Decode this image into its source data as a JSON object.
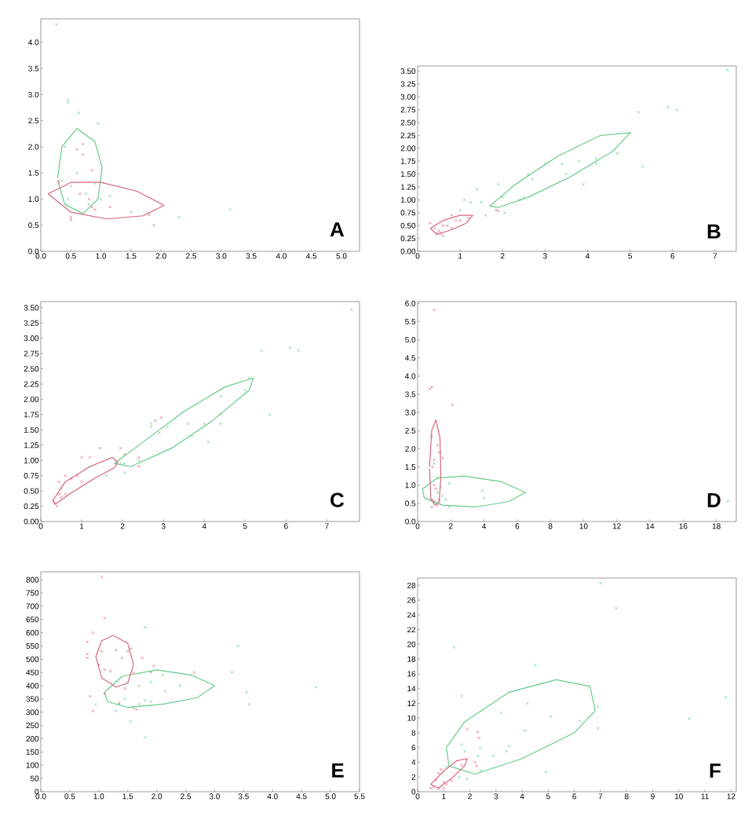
{
  "chart_data": [
    {
      "type": "scatter",
      "annotations": [
        "A"
      ],
      "xlim": [
        0,
        5.3
      ],
      "ylim": [
        0,
        4.45
      ],
      "xticks": [
        {
          "value": 0,
          "label": "0.0"
        },
        0.5,
        {
          "value": 1,
          "label": "1.0"
        },
        1.5,
        {
          "value": 2,
          "label": "2.0"
        },
        2.5,
        {
          "value": 3,
          "label": "3.0"
        },
        3.5,
        {
          "value": 4,
          "label": "4.0"
        },
        4.5,
        {
          "value": 5,
          "label": "5.0"
        }
      ],
      "yticks": [
        {
          "value": 0,
          "label": "0.0"
        },
        0.5,
        {
          "value": 1,
          "label": "1.0"
        },
        1.5,
        {
          "value": 2,
          "label": "2.0"
        },
        2.5,
        {
          "value": 3,
          "label": "3.0"
        },
        3.5,
        {
          "value": 4,
          "label": "4.0"
        }
      ],
      "series": [
        {
          "color": "#66cc88",
          "marker": "cross",
          "x": [
            0.26,
            0.45,
            0.45,
            0.63,
            0.95,
            0.4,
            0.6,
            0.35,
            0.5,
            0.75,
            0.45,
            0.9,
            1.0,
            1.15,
            1.5,
            2.3,
            3.15,
            0.8
          ],
          "values": [
            4.34,
            2.9,
            2.85,
            2.65,
            2.45,
            2.0,
            1.5,
            1.35,
            1.25,
            1.1,
            1.0,
            1.3,
            1.0,
            1.05,
            0.75,
            0.65,
            0.8,
            0.9
          ]
        },
        {
          "color": "#d9667a",
          "marker": "cross",
          "x": [
            0.6,
            0.7,
            0.7,
            0.85,
            0.3,
            0.65,
            0.85,
            0.9,
            0.5,
            0.5,
            1.15,
            1.8,
            1.88,
            0.8,
            0.3
          ],
          "values": [
            1.95,
            2.05,
            1.85,
            1.55,
            1.3,
            1.1,
            0.85,
            0.8,
            0.65,
            0.6,
            0.85,
            0.7,
            0.5,
            1.0,
            1.35
          ]
        },
        {
          "type": "line",
          "color": "#66cc88",
          "marker": "none",
          "x": [
            0.28,
            0.35,
            0.6,
            0.9,
            1.02,
            0.95,
            0.7,
            0.4,
            0.28
          ],
          "values": [
            1.4,
            2.0,
            2.35,
            2.1,
            1.6,
            1.0,
            0.72,
            0.9,
            1.35
          ]
        },
        {
          "type": "line",
          "color": "#d9667a",
          "marker": "none",
          "x": [
            0.12,
            0.5,
            1.0,
            1.6,
            2.05
          ],
          "values": [
            1.1,
            1.32,
            1.32,
            1.15,
            0.88
          ]
        },
        {
          "type": "line",
          "color": "#d9667a",
          "marker": "none",
          "x": [
            0.12,
            0.5,
            1.1,
            1.7,
            2.05
          ],
          "values": [
            1.1,
            0.75,
            0.62,
            0.68,
            0.88
          ]
        }
      ]
    },
    {
      "type": "scatter",
      "annotations": [
        "B"
      ],
      "xlim": [
        0,
        7.5
      ],
      "ylim": [
        0,
        3.6
      ],
      "xticks": [
        0,
        1,
        2,
        3,
        4,
        5,
        6,
        7
      ],
      "yticks": [
        {
          "value": 0,
          "label": "0.00"
        },
        0.25,
        {
          "value": 0.5,
          "label": "0.50"
        },
        0.75,
        {
          "value": 1,
          "label": "1.00"
        },
        1.25,
        {
          "value": 1.5,
          "label": "1.50"
        },
        1.75,
        {
          "value": 2,
          "label": "2.00"
        },
        2.25,
        {
          "value": 2.5,
          "label": "2.50"
        },
        2.75,
        {
          "value": 3,
          "label": "3.00"
        },
        3.25,
        {
          "value": 3.5,
          "label": "3.50"
        }
      ],
      "series": [
        {
          "color": "#66cc88",
          "marker": "cross",
          "x": [
            7.3,
            5.9,
            6.1,
            5.2,
            5.0,
            5.3,
            4.2,
            4.2,
            3.8,
            3.4,
            3.0,
            2.6,
            2.7,
            3.5,
            3.9,
            2.5,
            2.4,
            2.0,
            1.5,
            1.6,
            1.9,
            1.1,
            1.25,
            1.4,
            2.05,
            1.0,
            4.7
          ],
          "values": [
            3.52,
            2.8,
            2.75,
            2.7,
            2.3,
            1.65,
            1.8,
            1.7,
            1.75,
            1.7,
            1.7,
            1.5,
            1.4,
            1.5,
            1.3,
            1.05,
            1.0,
            1.05,
            0.95,
            0.7,
            1.3,
            1.0,
            0.95,
            1.2,
            0.75,
            0.8,
            1.9
          ]
        },
        {
          "color": "#d9667a",
          "marker": "cross",
          "x": [
            0.4,
            0.5,
            0.55,
            0.6,
            0.7,
            0.8,
            0.9,
            1.0,
            0.6,
            0.45,
            0.8,
            1.85,
            1.9,
            1.2,
            0.3
          ],
          "values": [
            0.45,
            0.4,
            0.35,
            0.5,
            0.5,
            0.45,
            0.6,
            0.6,
            0.3,
            0.35,
            0.7,
            0.8,
            0.78,
            0.65,
            0.55
          ]
        },
        {
          "type": "line",
          "color": "#66cc88",
          "marker": "none",
          "x": [
            1.7,
            2.3,
            3.3,
            4.3,
            5.0
          ],
          "values": [
            0.88,
            1.3,
            1.85,
            2.25,
            2.3
          ]
        },
        {
          "type": "line",
          "color": "#66cc88",
          "marker": "none",
          "x": [
            1.7,
            1.9,
            2.6,
            3.6,
            4.6,
            5.0
          ],
          "values": [
            0.88,
            0.85,
            1.05,
            1.45,
            1.95,
            2.3
          ]
        },
        {
          "type": "line",
          "color": "#d9667a",
          "marker": "none",
          "x": [
            0.3,
            0.6,
            1.0,
            1.3
          ],
          "values": [
            0.45,
            0.6,
            0.7,
            0.7
          ]
        },
        {
          "type": "line",
          "color": "#d9667a",
          "marker": "none",
          "x": [
            0.3,
            0.45,
            0.8,
            1.15,
            1.3
          ],
          "values": [
            0.45,
            0.33,
            0.42,
            0.55,
            0.7
          ]
        }
      ]
    },
    {
      "type": "scatter",
      "annotations": [
        "C"
      ],
      "xlim": [
        0,
        7.8
      ],
      "ylim": [
        0,
        3.6
      ],
      "xticks": [
        0,
        1,
        2,
        3,
        4,
        5,
        6,
        7
      ],
      "yticks": [
        {
          "value": 0,
          "label": "0.00"
        },
        0.25,
        {
          "value": 0.5,
          "label": "0.50"
        },
        0.75,
        {
          "value": 1,
          "label": "1.00"
        },
        1.25,
        {
          "value": 1.5,
          "label": "1.50"
        },
        1.75,
        {
          "value": 2,
          "label": "2.00"
        },
        2.25,
        {
          "value": 2.5,
          "label": "2.50"
        },
        2.75,
        {
          "value": 3,
          "label": "3.00"
        },
        3.25,
        {
          "value": 3.5,
          "label": "3.50"
        }
      ],
      "series": [
        {
          "color": "#66cc88",
          "marker": "cross",
          "x": [
            7.6,
            6.1,
            6.3,
            5.4,
            5.1,
            5.6,
            5.0,
            4.4,
            4.4,
            4.4,
            4.0,
            3.6,
            3.1,
            2.7,
            2.7,
            2.9,
            3.7,
            4.1,
            2.4,
            2.05,
            2.05,
            1.2,
            1.6,
            1.95
          ],
          "values": [
            3.47,
            2.85,
            2.8,
            2.8,
            2.35,
            1.75,
            2.15,
            2.05,
            1.75,
            1.6,
            1.6,
            1.6,
            1.55,
            1.6,
            1.55,
            1.45,
            1.4,
            1.3,
            1.0,
            0.8,
            0.95,
            0.9,
            0.75,
            0.95
          ]
        },
        {
          "color": "#d9667a",
          "marker": "cross",
          "x": [
            0.3,
            0.35,
            0.4,
            0.45,
            0.5,
            0.5,
            0.45,
            0.6,
            0.75,
            0.9,
            1.0,
            1.2,
            1.45,
            1.95,
            2.05,
            2.4,
            2.4,
            2.8,
            2.95,
            1.0,
            0.6
          ],
          "values": [
            0.35,
            0.3,
            0.25,
            0.45,
            0.4,
            0.55,
            0.65,
            0.75,
            0.7,
            0.75,
            0.65,
            1.05,
            1.2,
            1.2,
            1.1,
            1.05,
            0.9,
            1.65,
            1.7,
            1.05,
            0.45
          ]
        },
        {
          "type": "line",
          "color": "#66cc88",
          "marker": "none",
          "x": [
            1.8,
            2.5,
            3.5,
            4.5,
            5.2
          ],
          "values": [
            0.95,
            1.3,
            1.8,
            2.2,
            2.35
          ]
        },
        {
          "type": "line",
          "color": "#66cc88",
          "marker": "none",
          "x": [
            1.8,
            2.2,
            3.2,
            4.2,
            5.1,
            5.2
          ],
          "values": [
            0.95,
            0.9,
            1.2,
            1.65,
            2.15,
            2.35
          ]
        },
        {
          "type": "line",
          "color": "#d9667a",
          "marker": "none",
          "x": [
            0.3,
            0.6,
            1.2,
            1.75,
            1.88
          ],
          "values": [
            0.35,
            0.65,
            0.9,
            1.05,
            0.97
          ]
        },
        {
          "type": "line",
          "color": "#d9667a",
          "marker": "none",
          "x": [
            0.3,
            0.35,
            0.7,
            1.3,
            1.8,
            1.88
          ],
          "values": [
            0.35,
            0.28,
            0.45,
            0.7,
            0.88,
            0.97
          ]
        }
      ]
    },
    {
      "type": "scatter",
      "annotations": [
        "D"
      ],
      "xlim": [
        0,
        19.2
      ],
      "ylim": [
        0,
        6.05
      ],
      "xticks": [
        0,
        2,
        4,
        6,
        8,
        10,
        12,
        14,
        16,
        18
      ],
      "yticks": [
        {
          "value": 0,
          "label": "0.0"
        },
        0.5,
        {
          "value": 1,
          "label": "1.0"
        },
        1.5,
        {
          "value": 2,
          "label": "2.0"
        },
        2.5,
        {
          "value": 3,
          "label": "3.0"
        },
        3.5,
        {
          "value": 4,
          "label": "4.0"
        },
        4.5,
        {
          "value": 5,
          "label": "5.0"
        },
        5.5,
        {
          "value": 6,
          "label": "6.0"
        }
      ],
      "series": [
        {
          "color": "#66cc88",
          "marker": "cross",
          "x": [
            1.4,
            1.0,
            1.2,
            1.9,
            1.4,
            1.2,
            1.5,
            1.7,
            1.9,
            3.9,
            4.0,
            1.0,
            1.3,
            18.7
          ],
          "values": [
            1.9,
            1.6,
            1.2,
            1.05,
            0.95,
            0.8,
            0.7,
            0.6,
            0.4,
            0.85,
            0.65,
            0.5,
            0.5,
            0.55
          ]
        },
        {
          "color": "#d9667a",
          "marker": "cross",
          "x": [
            1.0,
            0.85,
            0.75,
            2.1,
            0.85,
            1.2,
            1.3,
            1.5,
            1.0,
            0.9,
            1.0,
            1.1,
            0.9,
            1.0,
            1.2,
            0.85,
            1.3
          ],
          "values": [
            5.82,
            3.7,
            3.65,
            3.2,
            2.35,
            2.1,
            1.9,
            1.75,
            1.7,
            1.5,
            1.0,
            0.9,
            0.6,
            0.55,
            0.45,
            0.4,
            0.6
          ]
        },
        {
          "type": "line",
          "color": "#66cc88",
          "marker": "none",
          "x": [
            0.3,
            1.2,
            2.8,
            5.0,
            6.5
          ],
          "values": [
            0.9,
            1.2,
            1.25,
            1.1,
            0.8
          ]
        },
        {
          "type": "line",
          "color": "#66cc88",
          "marker": "none",
          "x": [
            0.3,
            0.4,
            1.5,
            3.5,
            5.5,
            6.5
          ],
          "values": [
            0.9,
            0.65,
            0.45,
            0.4,
            0.55,
            0.8
          ]
        },
        {
          "type": "line",
          "color": "#d9667a",
          "marker": "none",
          "x": [
            0.72,
            0.85,
            1.1,
            1.35,
            1.4,
            1.3,
            1.05,
            0.8,
            0.72
          ],
          "values": [
            1.5,
            2.5,
            2.8,
            2.3,
            1.2,
            0.55,
            0.45,
            0.6,
            1.45
          ]
        }
      ]
    },
    {
      "type": "scatter",
      "annotations": [
        "E"
      ],
      "xlim": [
        0,
        5.5
      ],
      "ylim": [
        0,
        830
      ],
      "xticks": [
        {
          "value": 0,
          "label": "0.0"
        },
        0.5,
        {
          "value": 1,
          "label": "1.0"
        },
        1.5,
        {
          "value": 2,
          "label": "2.0"
        },
        2.5,
        {
          "value": 3,
          "label": "3.0"
        },
        3.5,
        {
          "value": 4,
          "label": "4.0"
        },
        4.5,
        {
          "value": 5,
          "label": "5.0"
        },
        5.5
      ],
      "yticks": [
        0,
        50,
        100,
        150,
        200,
        250,
        300,
        350,
        400,
        450,
        500,
        550,
        600,
        650,
        700,
        750,
        800
      ],
      "series": [
        {
          "color": "#d9667a",
          "marker": "cross",
          "x": [
            1.05,
            1.1,
            0.9,
            0.8,
            0.8,
            0.8,
            1.05,
            1.3,
            1.55,
            1.5,
            1.4,
            1.75,
            1.0,
            1.2,
            1.1,
            1.95,
            1.9,
            1.6,
            0.85,
            1.1,
            1.35,
            1.65,
            0.9,
            1.45,
            2.65
          ],
          "values": [
            810,
            655,
            600,
            565,
            520,
            505,
            530,
            535,
            540,
            530,
            505,
            505,
            480,
            455,
            460,
            475,
            450,
            450,
            360,
            370,
            335,
            310,
            305,
            390,
            450
          ]
        },
        {
          "color": "#66cc88",
          "marker": "cross",
          "x": [
            1.8,
            3.4,
            3.3,
            3.55,
            3.6,
            4.75,
            2.4,
            2.1,
            1.9,
            1.7,
            1.5,
            1.8,
            1.9,
            1.7,
            1.6,
            1.35,
            1.3,
            1.55,
            1.8,
            0.95,
            1.45,
            2.15
          ],
          "values": [
            620,
            550,
            450,
            375,
            330,
            395,
            400,
            440,
            415,
            400,
            410,
            345,
            340,
            330,
            315,
            330,
            305,
            265,
            205,
            330,
            350,
            380
          ]
        },
        {
          "type": "line",
          "color": "#66cc88",
          "marker": "none",
          "x": [
            1.1,
            1.4,
            2.0,
            2.6,
            3.0
          ],
          "values": [
            375,
            435,
            460,
            440,
            400
          ]
        },
        {
          "type": "line",
          "color": "#66cc88",
          "marker": "none",
          "x": [
            1.1,
            1.15,
            1.5,
            2.1,
            2.7,
            3.0
          ],
          "values": [
            375,
            340,
            318,
            330,
            355,
            400
          ]
        },
        {
          "type": "line",
          "color": "#d9667a",
          "marker": "none",
          "x": [
            0.95,
            1.05,
            1.25,
            1.5,
            1.6
          ],
          "values": [
            510,
            570,
            590,
            560,
            480
          ]
        },
        {
          "type": "line",
          "color": "#d9667a",
          "marker": "none",
          "x": [
            0.95,
            1.05,
            1.3,
            1.5,
            1.6
          ],
          "values": [
            510,
            430,
            395,
            410,
            480
          ]
        }
      ]
    },
    {
      "type": "scatter",
      "annotations": [
        "F"
      ],
      "xlim": [
        0,
        12.2
      ],
      "ylim": [
        0,
        29
      ],
      "xticks": [
        0,
        1,
        2,
        3,
        4,
        5,
        6,
        7,
        8,
        9,
        10,
        11,
        12
      ],
      "yticks": [
        0,
        2,
        4,
        6,
        8,
        10,
        12,
        14,
        16,
        18,
        20,
        22,
        24,
        26,
        28
      ],
      "series": [
        {
          "color": "#66cc88",
          "marker": "cross",
          "x": [
            7.0,
            7.6,
            1.4,
            4.5,
            1.7,
            4.2,
            3.2,
            5.1,
            6.9,
            6.2,
            6.9,
            4.1,
            3.5,
            3.4,
            2.4,
            2.9,
            1.7,
            1.8,
            2.3,
            2.4,
            4.9,
            10.4,
            11.8,
            1.1,
            1.9,
            1.6
          ],
          "values": [
            28.3,
            24.9,
            19.6,
            17.2,
            13.0,
            12.0,
            10.7,
            10.2,
            11.5,
            9.6,
            8.6,
            8.3,
            6.2,
            5.5,
            5.9,
            4.9,
            6.4,
            5.5,
            4.8,
            2.9,
            2.7,
            9.9,
            12.8,
            3.4,
            1.7,
            2.0
          ]
        },
        {
          "color": "#d9667a",
          "marker": "cross",
          "x": [
            1.9,
            2.3,
            2.35,
            2.2,
            2.25,
            1.7,
            0.9,
            0.8,
            0.7,
            1.0,
            1.1,
            1.3,
            0.6,
            0.8,
            0.5,
            1.0
          ],
          "values": [
            8.5,
            8.1,
            7.3,
            4.0,
            3.5,
            3.6,
            3.0,
            2.5,
            1.6,
            1.3,
            1.0,
            1.5,
            0.6,
            0.4,
            0.5,
            0.5
          ]
        },
        {
          "type": "line",
          "color": "#66cc88",
          "marker": "none",
          "x": [
            1.1,
            1.8,
            3.5,
            5.3,
            6.6,
            6.8
          ],
          "values": [
            6.0,
            9.5,
            13.5,
            15.2,
            14.3,
            11.0
          ]
        },
        {
          "type": "line",
          "color": "#66cc88",
          "marker": "none",
          "x": [
            1.1,
            1.2,
            2.2,
            4.0,
            6.0,
            6.8
          ],
          "values": [
            6.0,
            3.5,
            2.4,
            4.5,
            8.0,
            11.0
          ]
        },
        {
          "type": "line",
          "color": "#d9667a",
          "marker": "none",
          "x": [
            0.5,
            1.0,
            1.5,
            1.9
          ],
          "values": [
            1.0,
            2.8,
            4.2,
            4.5
          ]
        },
        {
          "type": "line",
          "color": "#d9667a",
          "marker": "none",
          "x": [
            0.5,
            0.8,
            1.3,
            1.8,
            1.9
          ],
          "values": [
            1.0,
            0.5,
            1.8,
            3.5,
            4.5
          ]
        }
      ]
    }
  ]
}
